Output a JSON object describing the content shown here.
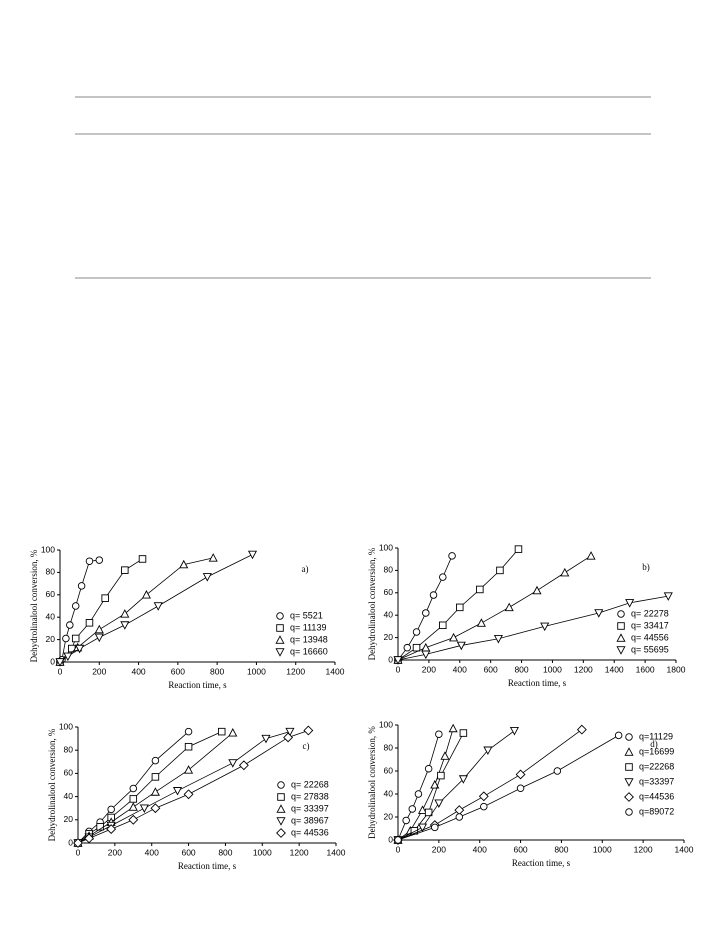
{
  "chart_data": [
    {
      "type": "scatter",
      "annotation": "a)",
      "xlabel": "Reaction time, s",
      "ylabel": "Dehydrolinalool conversion, %",
      "xlim": [
        0,
        1400
      ],
      "xticks": [
        0,
        200,
        400,
        600,
        800,
        1000,
        1200,
        1400
      ],
      "ylim": [
        0,
        100
      ],
      "yticks": [
        0,
        20,
        40,
        60,
        80,
        100
      ],
      "legend": "lower right",
      "series": [
        {
          "name": "q= 5521",
          "color": "#000",
          "marker": "circle",
          "x": [
            0,
            10,
            30,
            50,
            80,
            110,
            150,
            200
          ],
          "values": [
            0,
            2,
            21,
            33,
            50,
            68,
            90,
            91
          ]
        },
        {
          "name": "q= 11139",
          "color": "#000",
          "marker": "square",
          "x": [
            0,
            60,
            80,
            150,
            230,
            330,
            420
          ],
          "values": [
            0,
            12,
            21,
            35,
            57,
            82,
            92
          ]
        },
        {
          "name": "q= 13948",
          "color": "#000",
          "marker": "triangle-up",
          "x": [
            0,
            90,
            200,
            330,
            440,
            630,
            780
          ],
          "values": [
            0,
            13,
            29,
            43,
            60,
            87,
            93
          ]
        },
        {
          "name": "q= 16660",
          "color": "#000",
          "marker": "triangle-down",
          "x": [
            0,
            40,
            100,
            200,
            330,
            500,
            750,
            980
          ],
          "values": [
            0,
            5,
            12,
            22,
            33,
            50,
            76,
            96
          ]
        }
      ]
    },
    {
      "type": "scatter",
      "annotation": "b)",
      "xlabel": "Reaction time, s",
      "ylabel": "Dehydrolinalool conversion, %",
      "xlim": [
        0,
        1800
      ],
      "xticks": [
        0,
        200,
        400,
        600,
        800,
        1000,
        1200,
        1400,
        1600,
        1800
      ],
      "ylim": [
        0,
        100
      ],
      "yticks": [
        0,
        20,
        40,
        60,
        80,
        100
      ],
      "legend": "lower right",
      "series": [
        {
          "name": "q= 22278",
          "color": "#000",
          "marker": "circle",
          "x": [
            0,
            60,
            120,
            180,
            230,
            290,
            350
          ],
          "values": [
            0,
            11,
            25,
            42,
            58,
            74,
            93
          ]
        },
        {
          "name": "q= 33417",
          "color": "#000",
          "marker": "square",
          "x": [
            0,
            120,
            290,
            400,
            530,
            660,
            780
          ],
          "values": [
            0,
            11,
            31,
            47,
            63,
            80,
            99
          ]
        },
        {
          "name": "q= 44556",
          "color": "#000",
          "marker": "triangle-up",
          "x": [
            0,
            180,
            360,
            540,
            720,
            900,
            1080,
            1250
          ],
          "values": [
            0,
            11,
            20,
            33,
            47,
            62,
            78,
            93
          ]
        },
        {
          "name": "q= 55695",
          "color": "#000",
          "marker": "triangle-down",
          "x": [
            0,
            180,
            410,
            650,
            950,
            1300,
            1500,
            1750
          ],
          "values": [
            0,
            5,
            13,
            19,
            30,
            42,
            51,
            57
          ]
        }
      ]
    },
    {
      "type": "scatter",
      "annotation": "c)",
      "xlabel": "Reaction time, s",
      "ylabel": "Dehydrolinalool conversion, %",
      "xlim": [
        0,
        1400
      ],
      "xticks": [
        0,
        200,
        400,
        600,
        800,
        1000,
        1200,
        1400
      ],
      "ylim": [
        0,
        100
      ],
      "yticks": [
        0,
        20,
        40,
        60,
        80,
        100
      ],
      "legend": "lower right",
      "series": [
        {
          "name": "q= 22268",
          "color": "#000",
          "marker": "circle",
          "x": [
            0,
            60,
            120,
            180,
            300,
            420,
            600
          ],
          "values": [
            0,
            10,
            18,
            29,
            47,
            71,
            96
          ]
        },
        {
          "name": "q= 27838",
          "color": "#000",
          "marker": "square",
          "x": [
            0,
            60,
            120,
            180,
            300,
            420,
            600,
            780
          ],
          "values": [
            0,
            8,
            14,
            22,
            38,
            57,
            83,
            96
          ]
        },
        {
          "name": "q= 33397",
          "color": "#000",
          "marker": "triangle-up",
          "x": [
            0,
            60,
            180,
            300,
            420,
            600,
            840
          ],
          "values": [
            0,
            6,
            18,
            31,
            44,
            63,
            95
          ]
        },
        {
          "name": "q= 38967",
          "color": "#000",
          "marker": "triangle-down",
          "x": [
            0,
            60,
            180,
            360,
            540,
            840,
            1020,
            1150
          ],
          "values": [
            0,
            5,
            15,
            30,
            45,
            69,
            90,
            96
          ]
        },
        {
          "name": "q= 44536",
          "color": "#000",
          "marker": "diamond",
          "x": [
            0,
            60,
            180,
            300,
            420,
            600,
            900,
            1140,
            1250
          ],
          "values": [
            0,
            4,
            12,
            20,
            30,
            42,
            67,
            91,
            97
          ]
        }
      ]
    },
    {
      "type": "scatter",
      "annotation": "d)",
      "xlabel": "Reaction time, s",
      "ylabel": "Dehydrolinalool conversion, %",
      "xlim": [
        0,
        1400
      ],
      "xticks": [
        0,
        200,
        400,
        600,
        800,
        1000,
        1200,
        1400
      ],
      "ylim": [
        0,
        100
      ],
      "yticks": [
        0,
        20,
        40,
        60,
        80,
        100
      ],
      "legend": "right",
      "series": [
        {
          "name": "q=11129",
          "color": "#000",
          "marker": "circle",
          "x": [
            0,
            40,
            70,
            100,
            150,
            200
          ],
          "values": [
            0,
            17,
            27,
            40,
            62,
            92
          ]
        },
        {
          "name": "q=16699",
          "color": "#000",
          "marker": "triangle-up",
          "x": [
            0,
            60,
            120,
            180,
            230,
            270
          ],
          "values": [
            0,
            8,
            26,
            48,
            73,
            97
          ]
        },
        {
          "name": "q=22268",
          "color": "#000",
          "marker": "square",
          "x": [
            0,
            80,
            150,
            210,
            320
          ],
          "values": [
            0,
            8,
            24,
            56,
            93
          ]
        },
        {
          "name": "q=33397",
          "color": "#000",
          "marker": "triangle-down",
          "x": [
            0,
            120,
            200,
            320,
            440,
            570
          ],
          "values": [
            0,
            11,
            32,
            53,
            78,
            95
          ]
        },
        {
          "name": "q=44536",
          "color": "#000",
          "marker": "diamond",
          "x": [
            0,
            180,
            300,
            420,
            600,
            900
          ],
          "values": [
            0,
            13,
            26,
            38,
            57,
            96
          ]
        },
        {
          "name": "q=89072",
          "color": "#000",
          "marker": "circle",
          "x": [
            0,
            180,
            300,
            420,
            600,
            780,
            1080
          ],
          "values": [
            0,
            11,
            20,
            29,
            45,
            60,
            91
          ]
        }
      ]
    }
  ]
}
